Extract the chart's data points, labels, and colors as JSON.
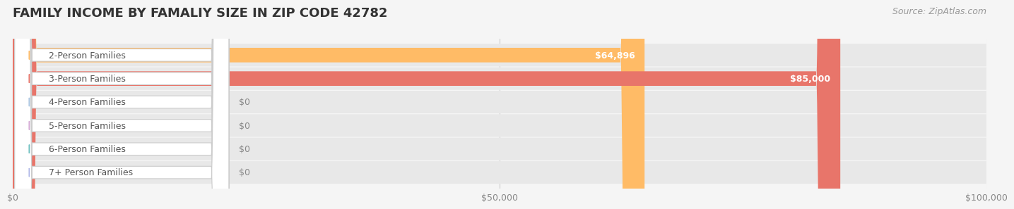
{
  "title": "FAMILY INCOME BY FAMALIY SIZE IN ZIP CODE 42782",
  "source": "Source: ZipAtlas.com",
  "categories": [
    "2-Person Families",
    "3-Person Families",
    "4-Person Families",
    "5-Person Families",
    "6-Person Families",
    "7+ Person Families"
  ],
  "values": [
    64896,
    85000,
    0,
    0,
    0,
    0
  ],
  "bar_colors": [
    "#FFBB66",
    "#E8756A",
    "#A8C4E0",
    "#D4A8D4",
    "#6CBFBF",
    "#B0B8E8"
  ],
  "label_colors": [
    "#FFBB66",
    "#E8756A",
    "#A8C4E0",
    "#D4A8D4",
    "#6CBFBF",
    "#B0B8E8"
  ],
  "value_labels": [
    "$64,896",
    "$85,000",
    "$0",
    "$0",
    "$0",
    "$0"
  ],
  "xlim": [
    0,
    100000
  ],
  "xticks": [
    0,
    50000,
    100000
  ],
  "xtick_labels": [
    "$0",
    "$50,000",
    "$100,000"
  ],
  "background_color": "#f5f5f5",
  "bar_background_color": "#e8e8e8",
  "title_fontsize": 13,
  "source_fontsize": 9,
  "label_fontsize": 9,
  "value_fontsize": 9
}
